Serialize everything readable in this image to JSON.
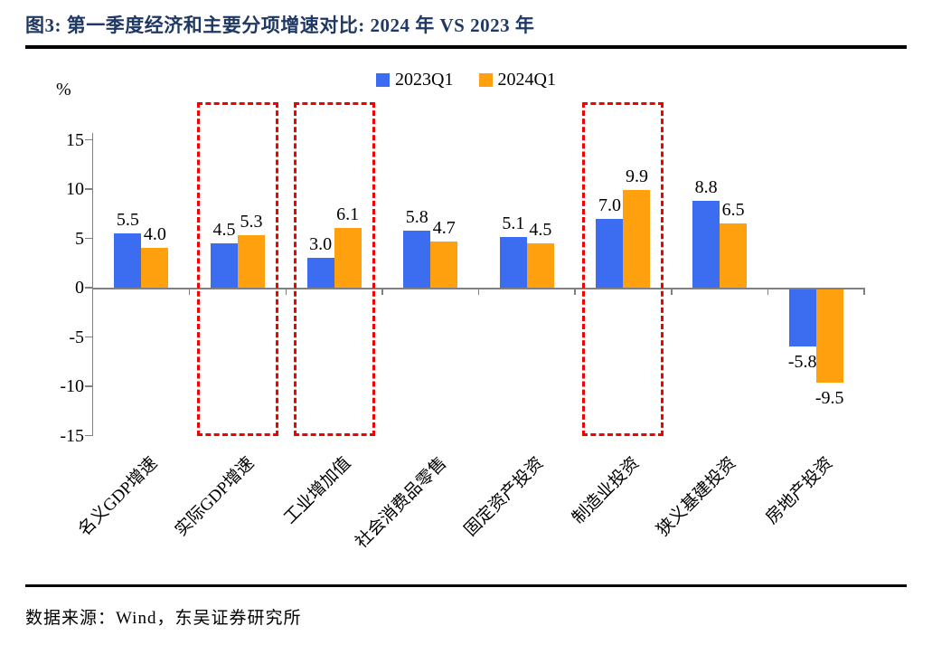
{
  "page": {
    "title": "图3:  第一季度经济和主要分项增速对比:  2024 年  VS 2023 年",
    "source": "数据来源：Wind，东吴证券研究所"
  },
  "colors": {
    "title_navy": "#1F3864",
    "rule_black": "#000000",
    "axis_gray": "#808080",
    "bar_blue": "#3C6CF0",
    "bar_orange": "#FFA00F",
    "highlight_red": "#F40000"
  },
  "chart_data": {
    "type": "bar",
    "title": "第一季度经济和主要分项增速对比: 2024 年 VS 2023 年",
    "unit_label": "%",
    "categories": [
      "名义GDP增速",
      "实际GDP增速",
      "工业增加值",
      "社会消费品零售",
      "固定资产投资",
      "制造业投资",
      "狭义基建投资",
      "房地产投资"
    ],
    "series": [
      {
        "name": "2023Q1",
        "color": "#3C6CF0",
        "values": [
          5.5,
          4.5,
          3.0,
          5.8,
          5.1,
          7.0,
          8.8,
          -5.8
        ]
      },
      {
        "name": "2024Q1",
        "color": "#FFA00F",
        "values": [
          4.0,
          5.3,
          6.1,
          4.7,
          4.5,
          9.9,
          6.5,
          -9.5
        ]
      }
    ],
    "yticks": [
      15,
      10,
      5,
      0,
      -5,
      -10,
      -15
    ],
    "ylim": [
      -15,
      15
    ],
    "grid": false,
    "legend_position": "top-center",
    "value_labels": true,
    "highlighted_categories": [
      "实际GDP增速",
      "工业增加值",
      "制造业投资"
    ],
    "highlight_style": "red-dashed-box"
  }
}
